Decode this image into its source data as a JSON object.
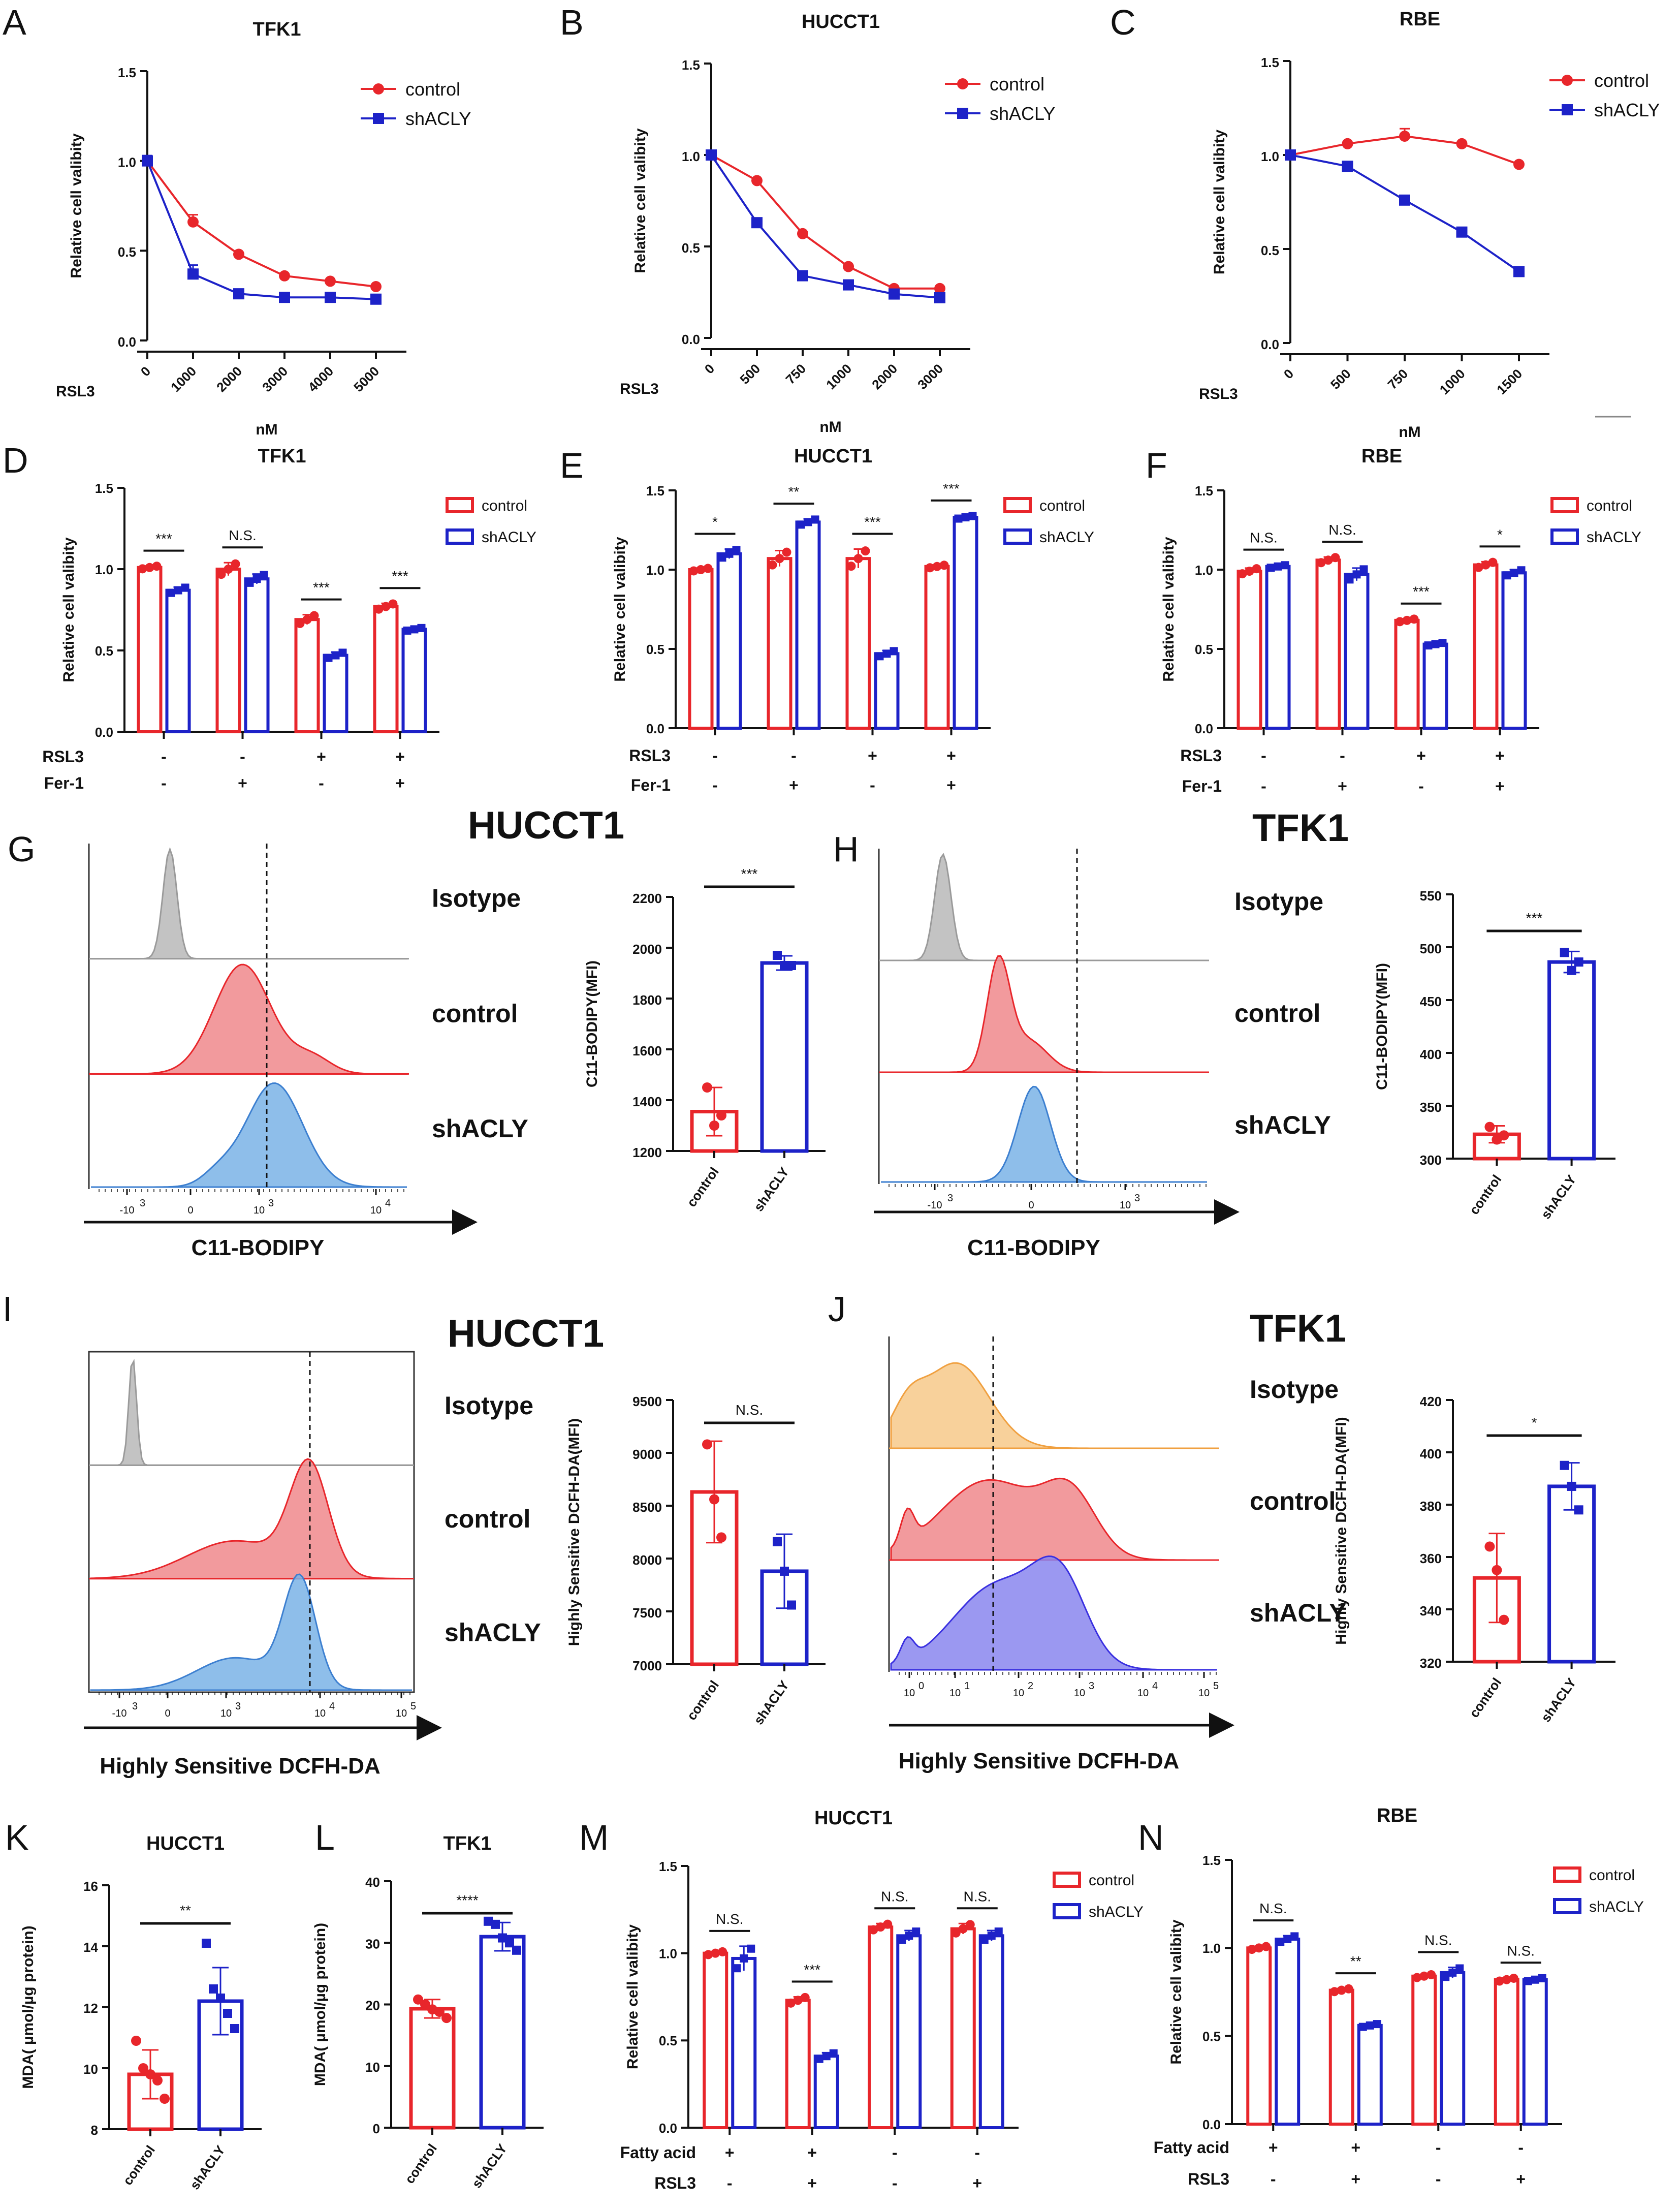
{
  "colors": {
    "control": "#e8262b",
    "shACLY": "#1d22c8",
    "isotype": "#b8b8b8",
    "control_fill": "#f0888c",
    "shACLY_fill": "#7ab3e6",
    "tfk1_isotype_fill": "#f7c98a",
    "tfk1_shACLY_fill": "#8a86ee"
  },
  "chart_data": [
    {
      "id": "A",
      "type": "line",
      "title": "TFK1",
      "xlabel": "nM",
      "xprefix": "RSL3",
      "ylabel": "Relative cell valibity",
      "categories": [
        "0",
        "1000",
        "2000",
        "3000",
        "4000",
        "5000"
      ],
      "ylim": [
        0,
        1.5
      ],
      "yticks": [
        "0.0",
        "0.5",
        "1.0",
        "1.5"
      ],
      "series": [
        {
          "name": "control",
          "values": [
            1.0,
            0.66,
            0.48,
            0.36,
            0.33,
            0.3
          ],
          "err": [
            0.02,
            0.04,
            0.01,
            0.01,
            0.01,
            0.01
          ]
        },
        {
          "name": "shACLY",
          "values": [
            1.0,
            0.37,
            0.26,
            0.24,
            0.24,
            0.23
          ],
          "err": [
            0.03,
            0.05,
            0.02,
            0.01,
            0.01,
            0.02
          ]
        }
      ]
    },
    {
      "id": "B",
      "type": "line",
      "title": "HUCCT1",
      "xlabel": "nM",
      "xprefix": "RSL3",
      "ylabel": "Relative cell valibity",
      "categories": [
        "0",
        "500",
        "750",
        "1000",
        "2000",
        "3000"
      ],
      "ylim": [
        0,
        1.5
      ],
      "yticks": [
        "0.0",
        "0.5",
        "1.0",
        "1.5"
      ],
      "series": [
        {
          "name": "control",
          "values": [
            1.0,
            0.86,
            0.57,
            0.39,
            0.27,
            0.27
          ],
          "err": [
            0.01,
            0.01,
            0.01,
            0.01,
            0.01,
            0.01
          ]
        },
        {
          "name": "shACLY",
          "values": [
            1.0,
            0.63,
            0.34,
            0.29,
            0.24,
            0.22
          ],
          "err": [
            0.01,
            0.01,
            0.01,
            0.01,
            0.01,
            0.02
          ]
        }
      ]
    },
    {
      "id": "C",
      "type": "line",
      "title": "RBE",
      "xlabel": "nM",
      "xprefix": "RSL3",
      "ylabel": "Relative cell valibity",
      "categories": [
        "0",
        "500",
        "750",
        "1000",
        "1500"
      ],
      "ylim": [
        0,
        1.5
      ],
      "yticks": [
        "0.0",
        "0.5",
        "1.0",
        "1.5"
      ],
      "series": [
        {
          "name": "control",
          "values": [
            1.0,
            1.06,
            1.1,
            1.06,
            0.95
          ],
          "err": [
            0.01,
            0.01,
            0.04,
            0.01,
            0.01
          ]
        },
        {
          "name": "shACLY",
          "values": [
            1.0,
            0.94,
            0.76,
            0.59,
            0.38
          ],
          "err": [
            0.01,
            0.02,
            0.01,
            0.01,
            0.01
          ]
        }
      ]
    },
    {
      "id": "D",
      "type": "bar",
      "title": "TFK1",
      "ylabel": "Relative cell valibity",
      "ylim": [
        0,
        1.5
      ],
      "yticks": [
        "0.0",
        "0.5",
        "1.0",
        "1.5"
      ],
      "rows": [
        {
          "label": "RSL3",
          "signs": [
            "-",
            "-",
            "+",
            "+"
          ]
        },
        {
          "label": "Fer-1",
          "signs": [
            "-",
            "+",
            "-",
            "+"
          ]
        }
      ],
      "series": [
        {
          "name": "control",
          "values": [
            1.01,
            1.0,
            0.69,
            0.77
          ],
          "err": [
            0.01,
            0.04,
            0.03,
            0.02
          ]
        },
        {
          "name": "shACLY",
          "values": [
            0.87,
            0.94,
            0.47,
            0.63
          ],
          "err": [
            0.02,
            0.03,
            0.02,
            0.01
          ]
        }
      ],
      "significance": [
        "***",
        "N.S.",
        "***",
        "***"
      ]
    },
    {
      "id": "E",
      "type": "bar",
      "title": "HUCCT1",
      "ylabel": "Relative cell valibity",
      "ylim": [
        0,
        1.5
      ],
      "yticks": [
        "0.0",
        "0.5",
        "1.0",
        "1.5"
      ],
      "rows": [
        {
          "label": "RSL3",
          "signs": [
            "-",
            "-",
            "+",
            "+"
          ]
        },
        {
          "label": "Fer-1",
          "signs": [
            "-",
            "+",
            "-",
            "+"
          ]
        }
      ],
      "series": [
        {
          "name": "control",
          "values": [
            1.0,
            1.07,
            1.07,
            1.02
          ],
          "err": [
            0.01,
            0.05,
            0.06,
            0.01
          ]
        },
        {
          "name": "shACLY",
          "values": [
            1.1,
            1.3,
            0.47,
            1.33
          ],
          "err": [
            0.03,
            0.02,
            0.02,
            0.01
          ]
        }
      ],
      "significance": [
        "*",
        "**",
        "***",
        "***"
      ]
    },
    {
      "id": "F",
      "type": "bar",
      "title": "RBE",
      "ylabel": "Relative cell valibity",
      "ylim": [
        0,
        1.5
      ],
      "yticks": [
        "0.0",
        "0.5",
        "1.0",
        "1.5"
      ],
      "rows": [
        {
          "label": "RSL3",
          "signs": [
            "-",
            "-",
            "+",
            "+"
          ]
        },
        {
          "label": "Fer-1",
          "signs": [
            "-",
            "+",
            "-",
            "+"
          ]
        }
      ],
      "series": [
        {
          "name": "control",
          "values": [
            0.99,
            1.06,
            0.68,
            1.03
          ],
          "err": [
            0.02,
            0.02,
            0.01,
            0.02
          ]
        },
        {
          "name": "shACLY",
          "values": [
            1.02,
            0.97,
            0.53,
            0.98
          ],
          "err": [
            0.01,
            0.04,
            0.01,
            0.02
          ]
        }
      ],
      "significance": [
        "N.S.",
        "N.S.",
        "***",
        "*"
      ]
    },
    {
      "id": "G2",
      "type": "bar",
      "title": "",
      "ylabel": "C11-BODIPY(MFI)",
      "categories": [
        "control",
        "shACLY"
      ],
      "ylim": [
        1200,
        2200
      ],
      "yticks": [
        "1200",
        "1400",
        "1600",
        "1800",
        "2000",
        "2200"
      ],
      "values": [
        1355,
        1940
      ],
      "err": [
        95,
        28
      ],
      "points": [
        [
          1450,
          1300,
          1340
        ],
        [
          1970,
          1930,
          1930
        ]
      ],
      "significance": "***"
    },
    {
      "id": "H2",
      "type": "bar",
      "title": "",
      "ylabel": "C11-BODIPY(MFI)",
      "categories": [
        "control",
        "shACLY"
      ],
      "ylim": [
        300,
        550
      ],
      "yticks": [
        "300",
        "350",
        "400",
        "450",
        "500",
        "550"
      ],
      "values": [
        323,
        486
      ],
      "err": [
        8,
        10
      ],
      "points": [
        [
          330,
          318,
          322
        ],
        [
          495,
          478,
          486
        ]
      ],
      "significance": "***"
    },
    {
      "id": "I2",
      "type": "bar",
      "title": "",
      "ylabel": "Highly Sensitive DCFH-DA(MFI)",
      "categories": [
        "control",
        "shACLY"
      ],
      "ylim": [
        7000,
        9500
      ],
      "yticks": [
        "7000",
        "7500",
        "8000",
        "8500",
        "9000",
        "9500"
      ],
      "values": [
        8630,
        7880
      ],
      "err": [
        480,
        350
      ],
      "points": [
        [
          9080,
          8560,
          8200
        ],
        [
          8160,
          7880,
          7560
        ]
      ],
      "significance": "N.S."
    },
    {
      "id": "J2",
      "type": "bar",
      "title": "",
      "ylabel": "Highly Sensitive DCFH-DA(MFI)",
      "categories": [
        "control",
        "shACLY"
      ],
      "ylim": [
        320,
        420
      ],
      "yticks": [
        "320",
        "340",
        "360",
        "380",
        "400",
        "420"
      ],
      "values": [
        352,
        387
      ],
      "err": [
        17,
        9
      ],
      "points": [
        [
          364,
          355,
          336
        ],
        [
          395,
          387,
          378
        ]
      ],
      "significance": "*"
    },
    {
      "id": "K",
      "type": "bar",
      "title": "HUCCT1",
      "ylabel": "MDA( µmol/µg protein)",
      "categories": [
        "control",
        "shACLY"
      ],
      "ylim": [
        8,
        16
      ],
      "yticks": [
        "8",
        "10",
        "12",
        "14",
        "16"
      ],
      "values": [
        9.8,
        12.2
      ],
      "err": [
        0.8,
        1.1
      ],
      "points": [
        [
          10.9,
          10.0,
          9.8,
          9.6,
          9.0
        ],
        [
          14.1,
          12.6,
          12.3,
          11.8,
          11.3
        ]
      ],
      "significance": "**"
    },
    {
      "id": "L",
      "type": "bar",
      "title": "TFK1",
      "ylabel": "MDA( µmol/µg protein)",
      "categories": [
        "control",
        "shACLY"
      ],
      "ylim": [
        0,
        40
      ],
      "yticks": [
        "0",
        "10",
        "20",
        "30",
        "40"
      ],
      "values": [
        19.3,
        31.0
      ],
      "err": [
        1.5,
        2.3
      ],
      "points": [
        [
          20.8,
          20.0,
          19.2,
          18.8,
          17.8
        ],
        [
          33.5,
          33.0,
          30.8,
          30.0,
          28.8
        ]
      ],
      "significance": "****"
    },
    {
      "id": "M",
      "type": "bar",
      "title": "HUCCT1",
      "ylabel": "Relative cell valibity",
      "ylim": [
        0,
        1.5
      ],
      "yticks": [
        "0.0",
        "0.5",
        "1.0",
        "1.5"
      ],
      "rows": [
        {
          "label": "Fatty acid",
          "signs": [
            "+",
            "+",
            "-",
            "-"
          ]
        },
        {
          "label": "RSL3",
          "signs": [
            "-",
            "+",
            "-",
            "+"
          ]
        }
      ],
      "series": [
        {
          "name": "control",
          "values": [
            1.0,
            0.73,
            1.15,
            1.14
          ],
          "err": [
            0.01,
            0.02,
            0.02,
            0.03
          ]
        },
        {
          "name": "shACLY",
          "values": [
            0.97,
            0.41,
            1.1,
            1.1
          ],
          "err": [
            0.07,
            0.02,
            0.03,
            0.03
          ]
        }
      ],
      "significance": [
        "N.S.",
        "***",
        "N.S.",
        "N.S."
      ]
    },
    {
      "id": "N",
      "type": "bar",
      "title": "RBE",
      "ylabel": "Relative cell valibity",
      "ylim": [
        0,
        1.5
      ],
      "yticks": [
        "0.0",
        "0.5",
        "1.0",
        "1.5"
      ],
      "rows": [
        {
          "label": "Fatty acid",
          "signs": [
            "+",
            "+",
            "-",
            "-"
          ]
        },
        {
          "label": "RSL3",
          "signs": [
            "-",
            "+",
            "-",
            "+"
          ]
        }
      ],
      "series": [
        {
          "name": "control",
          "values": [
            1.0,
            0.76,
            0.84,
            0.82
          ],
          "err": [
            0.01,
            0.01,
            0.01,
            0.01
          ]
        },
        {
          "name": "shACLY",
          "values": [
            1.05,
            0.56,
            0.86,
            0.82
          ],
          "err": [
            0.02,
            0.01,
            0.03,
            0.01
          ]
        }
      ],
      "significance": [
        "N.S.",
        "**",
        "N.S.",
        "N.S."
      ]
    }
  ],
  "panel_labels": [
    "A",
    "B",
    "C",
    "D",
    "E",
    "F",
    "G",
    "H",
    "I",
    "J",
    "K",
    "L",
    "M",
    "N"
  ],
  "flow": {
    "G": {
      "title": "HUCCT1",
      "rows": [
        "Isotype",
        "control",
        "shACLY"
      ],
      "xlabel": "C11-BODIPY",
      "ticks": [
        "-10",
        "0",
        "10",
        "10"
      ],
      "tick_exp": [
        "3",
        "",
        "3",
        "4"
      ]
    },
    "H": {
      "title": "TFK1",
      "rows": [
        "Isotype",
        "control",
        "shACLY"
      ],
      "xlabel": "C11-BODIPY",
      "ticks": [
        "-10",
        "0",
        "10"
      ],
      "tick_exp": [
        "3",
        "",
        "3"
      ]
    },
    "I": {
      "title": "HUCCT1",
      "rows": [
        "Isotype",
        "control",
        "shACLY"
      ],
      "xlabel": "Highly Sensitive DCFH-DA",
      "ticks": [
        "-10",
        "0",
        "10",
        "10",
        "10"
      ],
      "tick_exp": [
        "3",
        "",
        "3",
        "4",
        "5"
      ]
    },
    "J": {
      "title": "TFK1",
      "rows": [
        "Isotype",
        "control",
        "shACLY"
      ],
      "xlabel": "Highly Sensitive DCFH-DA",
      "ticks": [
        "10",
        "10",
        "10",
        "10",
        "10",
        "10"
      ],
      "tick_exp": [
        "0",
        "1",
        "2",
        "3",
        "4",
        "5"
      ]
    }
  }
}
